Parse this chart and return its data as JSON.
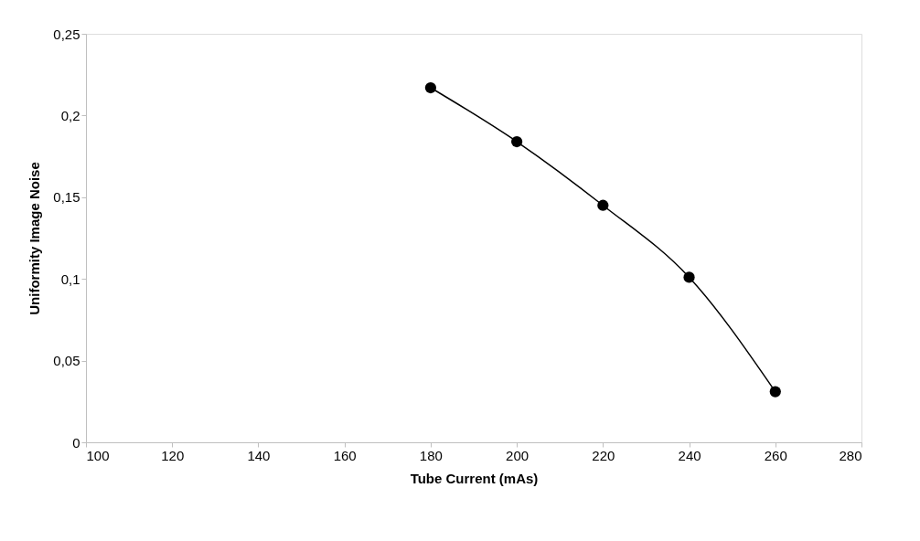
{
  "chart_data": {
    "type": "line",
    "xlabel": "Tube Current (mAs)",
    "ylabel": "Uniformity Image Noise",
    "x": [
      180,
      200,
      220,
      240,
      260
    ],
    "series": [
      {
        "color": "#000000",
        "values": [
          0.217,
          0.184,
          0.145,
          0.101,
          0.031
        ]
      }
    ],
    "xlim": [
      100,
      280
    ],
    "xticks": [
      100,
      120,
      140,
      160,
      180,
      200,
      220,
      240,
      260,
      280
    ],
    "ylim": [
      0,
      0.25
    ],
    "yticks": [
      0,
      {
        "value": 0.05,
        "label": "0,05"
      },
      {
        "value": 0.1,
        "label": "0,1"
      },
      {
        "value": 0.15,
        "label": "0,15"
      },
      {
        "value": 0.2,
        "label": "0,2"
      },
      {
        "value": 0.25,
        "label": "0,25"
      }
    ],
    "marker": "circle",
    "line_style": "solid",
    "grid": false
  }
}
